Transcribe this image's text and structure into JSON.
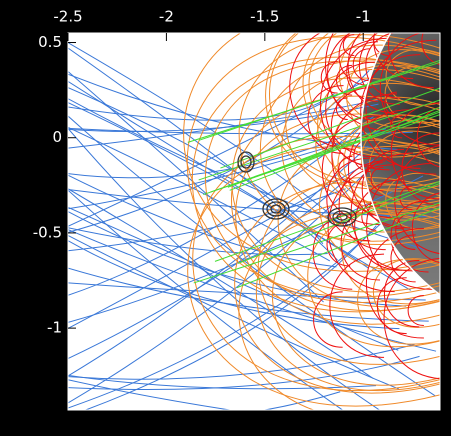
{
  "chart_data": {
    "type": "image",
    "xlim": [
      -2.5,
      -0.61
    ],
    "ylim": [
      -1.43,
      0.55
    ],
    "xticks": [
      -2.5,
      -2.0,
      -1.5,
      -1.0
    ],
    "yticks": [
      0.5,
      0.0,
      -0.5,
      -1.0
    ]
  }
}
